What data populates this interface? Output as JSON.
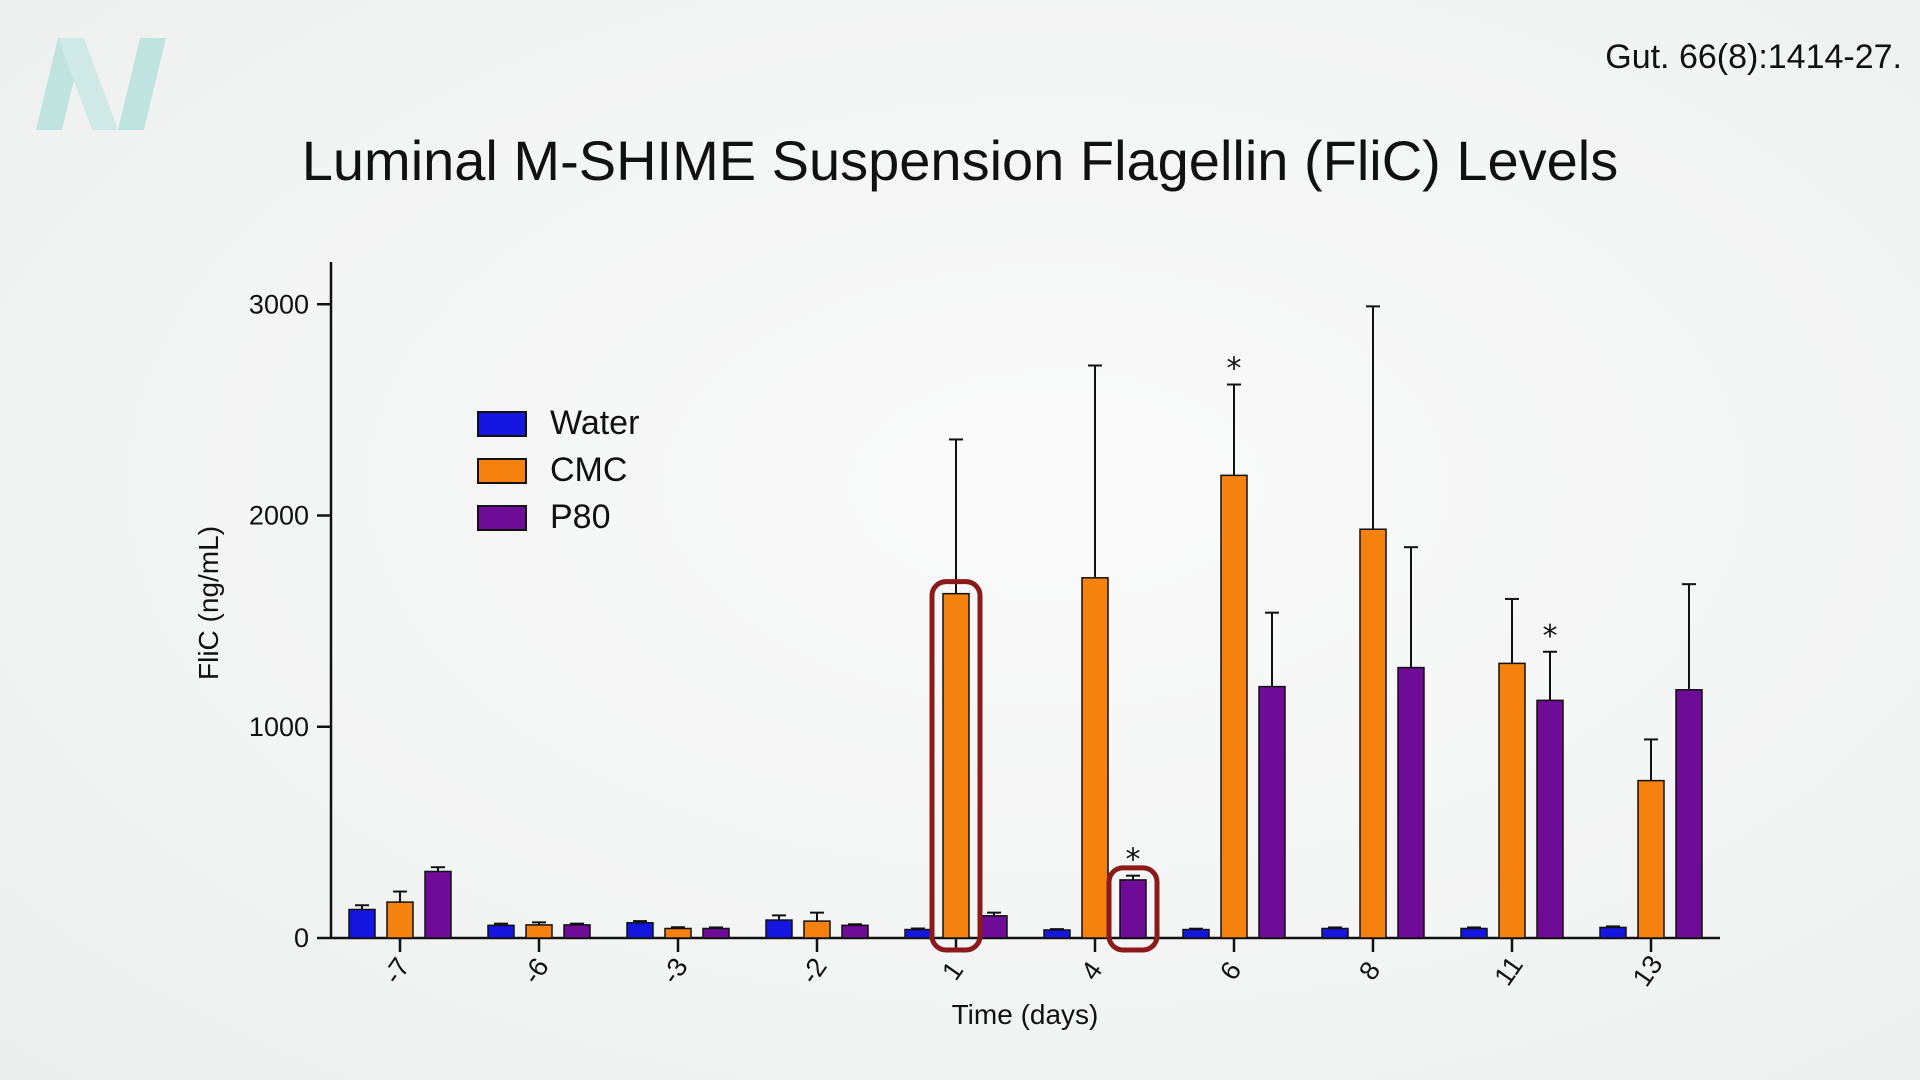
{
  "slide": {
    "citation": "Gut. 66(8):1414-27.",
    "title": "Luminal M-SHIME Suspension Flagellin (FliC) Levels",
    "logo_icon": "n-logo-icon",
    "logo_color": "#bfe3df"
  },
  "chart_data": {
    "type": "bar",
    "title": "",
    "xlabel": "Time (days)",
    "ylabel": "FliC (ng/mL)",
    "ylim": [
      0,
      3200
    ],
    "yticks": [
      0,
      1000,
      2000,
      3000
    ],
    "ytick_labels": [
      "0",
      "1000",
      "2000",
      "3000"
    ],
    "categories": [
      "-7",
      "-6",
      "-3",
      "-2",
      "1",
      "4",
      "6",
      "8",
      "11",
      "13"
    ],
    "legend_position": "upper-left",
    "grid": false,
    "series": [
      {
        "name": "Water",
        "color": "#1515e0",
        "values": [
          135,
          60,
          72,
          85,
          40,
          38,
          40,
          45,
          45,
          50
        ],
        "errors": [
          20,
          8,
          8,
          22,
          5,
          4,
          4,
          5,
          5,
          5
        ]
      },
      {
        "name": "CMC",
        "color": "#f5820f",
        "values": [
          170,
          62,
          45,
          80,
          1630,
          1705,
          2190,
          1935,
          1300,
          745
        ],
        "errors": [
          50,
          12,
          6,
          40,
          730,
          1005,
          430,
          1055,
          305,
          195
        ]
      },
      {
        "name": "P80",
        "color": "#6e0b97",
        "values": [
          315,
          62,
          45,
          60,
          105,
          275,
          1190,
          1280,
          1125,
          1175
        ],
        "errors": [
          20,
          6,
          5,
          5,
          15,
          20,
          350,
          570,
          230,
          500
        ]
      }
    ],
    "annotations": [
      {
        "type": "highlight",
        "category": "1",
        "series": "CMC",
        "color": "#8b1a1a"
      },
      {
        "type": "highlight",
        "category": "4",
        "series": "P80",
        "color": "#8b1a1a"
      },
      {
        "type": "significance",
        "symbol": "*",
        "category": "4",
        "series": "P80"
      },
      {
        "type": "significance",
        "symbol": "*",
        "category": "6",
        "series": "CMC"
      },
      {
        "type": "significance",
        "symbol": "*",
        "category": "11",
        "series": "P80"
      }
    ]
  }
}
